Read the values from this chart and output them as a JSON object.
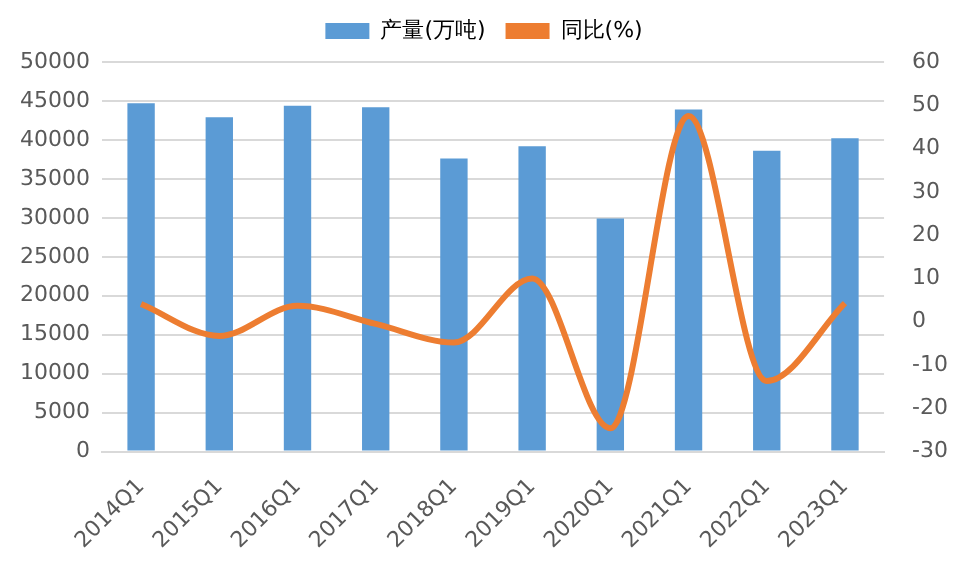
{
  "chart_data": {
    "type": "bar",
    "categories": [
      "2014Q1",
      "2015Q1",
      "2016Q1",
      "2017Q1",
      "2018Q1",
      "2019Q1",
      "2020Q1",
      "2021Q1",
      "2022Q1",
      "2023Q1"
    ],
    "series": [
      {
        "name": "产量(万吨)",
        "color": "#5b9bd5",
        "values": [
          44700,
          42900,
          44400,
          44200,
          37600,
          39200,
          29900,
          43900,
          38600,
          40200
        ]
      },
      {
        "name": "同比(%)",
        "type": "line",
        "axis": "y2",
        "color": "#ed7d31",
        "marker": "none",
        "values": [
          4.1,
          -3.3,
          3.7,
          -0.5,
          -4.8,
          10.0,
          -24.6,
          47.5,
          -13.7,
          4.3
        ]
      }
    ],
    "ylim": [
      0,
      50000
    ],
    "yticks": [
      0,
      5000,
      10000,
      15000,
      20000,
      25000,
      30000,
      35000,
      40000,
      45000,
      50000
    ],
    "y2lim": [
      -30,
      60
    ],
    "y2ticks": [
      -30,
      -20,
      -10,
      0,
      10,
      20,
      30,
      40,
      50,
      60
    ],
    "grid": "y",
    "legend": "top"
  }
}
